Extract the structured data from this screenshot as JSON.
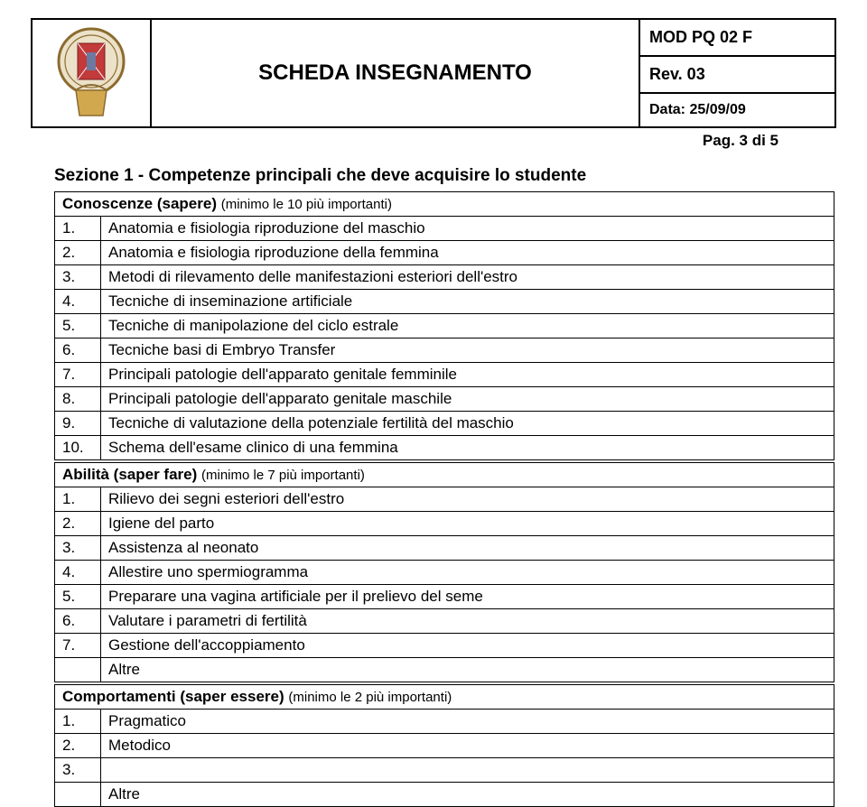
{
  "header": {
    "title": "SCHEDA INSEGNAMENTO",
    "doc_code": "MOD PQ 02 F",
    "revision": "Rev. 03",
    "date": "Data: 25/09/09",
    "page": "Pag. 3 di 5"
  },
  "section1": {
    "heading": "Sezione 1 - Competenze principali che deve acquisire lo studente",
    "conoscenze_label": "Conoscenze (sapere)",
    "conoscenze_note": "(minimo le 10 più importanti)",
    "conoscenze": [
      {
        "n": "1.",
        "text": "Anatomia e fisiologia riproduzione del maschio"
      },
      {
        "n": "2.",
        "text": "Anatomia e fisiologia riproduzione della femmina"
      },
      {
        "n": "3.",
        "text": "Metodi di rilevamento delle manifestazioni esteriori dell'estro"
      },
      {
        "n": "4.",
        "text": "Tecniche di inseminazione artificiale"
      },
      {
        "n": "5.",
        "text": "Tecniche di manipolazione del ciclo estrale"
      },
      {
        "n": "6.",
        "text": "Tecniche basi di Embryo Transfer"
      },
      {
        "n": "7.",
        "text": "Principali patologie dell'apparato genitale femminile"
      },
      {
        "n": "8.",
        "text": "Principali patologie dell'apparato genitale maschile"
      },
      {
        "n": "9.",
        "text": "Tecniche di valutazione della potenziale fertilità del maschio"
      },
      {
        "n": "10.",
        "text": "Schema dell'esame clinico di una femmina"
      }
    ],
    "abilita_label": "Abilità (saper fare)",
    "abilita_note": "(minimo le 7 più importanti)",
    "abilita": [
      {
        "n": "1.",
        "text": "Rilievo dei segni esteriori dell'estro"
      },
      {
        "n": "2.",
        "text": "Igiene del parto"
      },
      {
        "n": "3.",
        "text": "Assistenza al neonato"
      },
      {
        "n": "4.",
        "text": "Allestire uno spermiogramma"
      },
      {
        "n": "5.",
        "text": "Preparare una vagina artificiale per il prelievo del seme"
      },
      {
        "n": "6.",
        "text": "Valutare i parametri di fertilità"
      },
      {
        "n": "7.",
        "text": "Gestione dell'accoppiamento"
      },
      {
        "n": "",
        "text": "Altre"
      }
    ],
    "comportamenti_label": "Comportamenti (saper essere)",
    "comportamenti_note": "(minimo le 2 più importanti)",
    "comportamenti": [
      {
        "n": "1.",
        "text": "Pragmatico"
      },
      {
        "n": "2.",
        "text": "Metodico"
      },
      {
        "n": "3.",
        "text": ""
      },
      {
        "n": "",
        "text": "Altre"
      }
    ]
  },
  "colors": {
    "border": "#000000",
    "text": "#000000",
    "background": "#ffffff",
    "seal_red": "#c23a3a",
    "seal_gold": "#d2a84f",
    "seal_gray": "#9aa3b0",
    "seal_blue": "#6c7aa1"
  }
}
